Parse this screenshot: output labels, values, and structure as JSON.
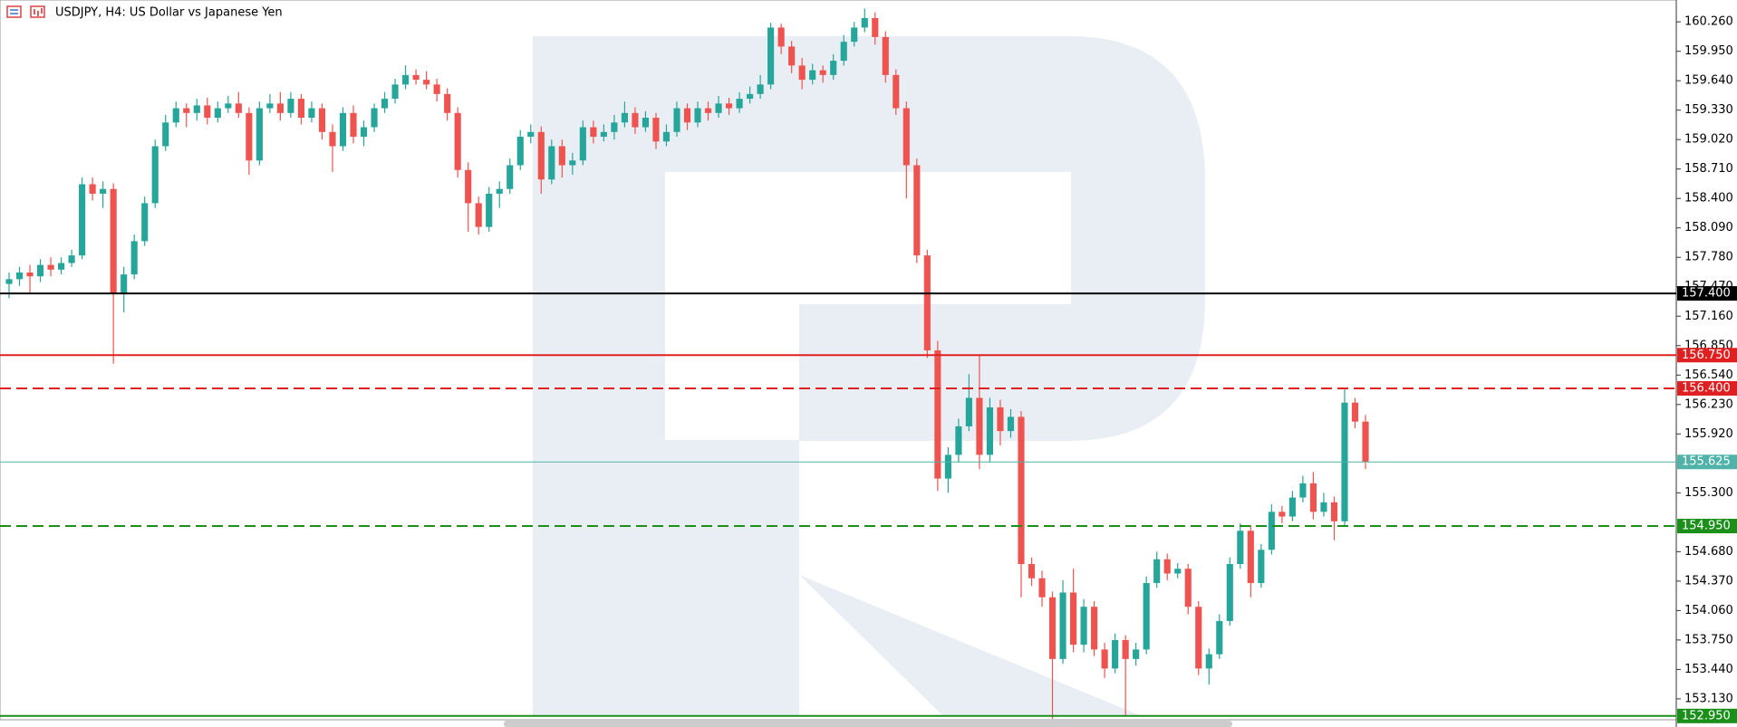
{
  "chart_data": {
    "type": "candlestick",
    "title": "USDJPY, H4:  US Dollar vs Japanese Yen",
    "bull_color": "#26a69a",
    "bear_color": "#ef5350",
    "ylim": [
      152.91,
      160.49
    ],
    "yticks": [
      {
        "value": 160.26,
        "label": "160.260"
      },
      {
        "value": 159.95,
        "label": "159.950"
      },
      {
        "value": 159.64,
        "label": "159.640"
      },
      {
        "value": 159.33,
        "label": "159.330"
      },
      {
        "value": 159.02,
        "label": "159.020"
      },
      {
        "value": 158.71,
        "label": "158.710"
      },
      {
        "value": 158.4,
        "label": "158.400"
      },
      {
        "value": 158.09,
        "label": "158.090"
      },
      {
        "value": 157.78,
        "label": "157.780"
      },
      {
        "value": 157.47,
        "label": "157.470"
      },
      {
        "value": 157.16,
        "label": "157.160"
      },
      {
        "value": 156.85,
        "label": "156.850"
      },
      {
        "value": 156.54,
        "label": "156.540"
      },
      {
        "value": 156.23,
        "label": "156.230"
      },
      {
        "value": 155.92,
        "label": "155.920"
      },
      {
        "value": 155.3,
        "label": "155.300"
      },
      {
        "value": 154.68,
        "label": "154.680"
      },
      {
        "value": 154.37,
        "label": "154.370"
      },
      {
        "value": 154.06,
        "label": "154.060"
      },
      {
        "value": 153.75,
        "label": "153.750"
      },
      {
        "value": 153.44,
        "label": "153.440"
      },
      {
        "value": 153.13,
        "label": "153.130"
      }
    ],
    "levels": [
      {
        "value": 157.4,
        "label": "157.400",
        "color": "#000000",
        "style": "solid"
      },
      {
        "value": 156.75,
        "label": "156.750",
        "color": "#e02020",
        "style": "solid"
      },
      {
        "value": 156.4,
        "label": "156.400",
        "color": "#e02020",
        "style": "dashed"
      },
      {
        "value": 155.625,
        "label": "155.625",
        "color": "#4fb3aa",
        "style": "thin"
      },
      {
        "value": 154.95,
        "label": "154.950",
        "color": "#1a8f1a",
        "style": "dashed"
      },
      {
        "value": 152.95,
        "label": "152.950",
        "color": "#1a8f1a",
        "style": "solid"
      }
    ],
    "ohlc": [
      [
        157.5,
        157.62,
        157.35,
        157.55
      ],
      [
        157.55,
        157.68,
        157.48,
        157.62
      ],
      [
        157.62,
        157.7,
        157.4,
        157.58
      ],
      [
        157.58,
        157.76,
        157.52,
        157.7
      ],
      [
        157.7,
        157.78,
        157.58,
        157.65
      ],
      [
        157.65,
        157.78,
        157.6,
        157.72
      ],
      [
        157.72,
        157.86,
        157.68,
        157.8
      ],
      [
        157.8,
        158.62,
        157.76,
        158.55
      ],
      [
        158.55,
        158.62,
        158.38,
        158.45
      ],
      [
        158.45,
        158.58,
        158.3,
        158.5
      ],
      [
        158.5,
        158.56,
        156.66,
        157.4
      ],
      [
        157.4,
        157.68,
        157.2,
        157.6
      ],
      [
        157.6,
        158.02,
        157.55,
        157.95
      ],
      [
        157.95,
        158.42,
        157.9,
        158.35
      ],
      [
        158.35,
        159.02,
        158.3,
        158.95
      ],
      [
        158.95,
        159.28,
        158.9,
        159.2
      ],
      [
        159.2,
        159.42,
        159.15,
        159.35
      ],
      [
        159.35,
        159.4,
        159.15,
        159.3
      ],
      [
        159.3,
        159.45,
        159.22,
        159.38
      ],
      [
        159.38,
        159.46,
        159.18,
        159.25
      ],
      [
        159.25,
        159.42,
        159.2,
        159.35
      ],
      [
        159.35,
        159.48,
        159.3,
        159.4
      ],
      [
        159.4,
        159.52,
        159.25,
        159.3
      ],
      [
        159.3,
        159.36,
        158.65,
        158.8
      ],
      [
        158.8,
        159.42,
        158.75,
        159.35
      ],
      [
        159.35,
        159.5,
        159.3,
        159.4
      ],
      [
        159.4,
        159.52,
        159.22,
        159.3
      ],
      [
        159.3,
        159.52,
        159.25,
        159.45
      ],
      [
        159.45,
        159.5,
        159.18,
        159.25
      ],
      [
        159.25,
        159.42,
        159.2,
        159.35
      ],
      [
        159.35,
        159.4,
        159.02,
        159.1
      ],
      [
        159.1,
        159.18,
        158.68,
        158.95
      ],
      [
        158.95,
        159.36,
        158.9,
        159.3
      ],
      [
        159.3,
        159.38,
        158.98,
        159.05
      ],
      [
        159.05,
        159.22,
        158.95,
        159.15
      ],
      [
        159.15,
        159.4,
        159.1,
        159.35
      ],
      [
        159.35,
        159.52,
        159.3,
        159.45
      ],
      [
        159.45,
        159.66,
        159.4,
        159.6
      ],
      [
        159.6,
        159.8,
        159.55,
        159.7
      ],
      [
        159.7,
        159.76,
        159.6,
        159.65
      ],
      [
        159.65,
        159.74,
        159.55,
        159.6
      ],
      [
        159.6,
        159.66,
        159.42,
        159.5
      ],
      [
        159.5,
        159.56,
        159.22,
        159.3
      ],
      [
        159.3,
        159.36,
        158.62,
        158.7
      ],
      [
        158.7,
        158.78,
        158.05,
        158.35
      ],
      [
        158.35,
        158.42,
        158.02,
        158.1
      ],
      [
        158.1,
        158.52,
        158.05,
        158.45
      ],
      [
        158.45,
        158.58,
        158.3,
        158.5
      ],
      [
        158.5,
        158.82,
        158.45,
        158.75
      ],
      [
        158.75,
        159.12,
        158.7,
        159.05
      ],
      [
        159.05,
        159.18,
        158.98,
        159.1
      ],
      [
        159.1,
        159.16,
        158.45,
        158.6
      ],
      [
        158.6,
        159.02,
        158.55,
        158.95
      ],
      [
        158.95,
        159.02,
        158.62,
        158.75
      ],
      [
        158.75,
        158.88,
        158.65,
        158.8
      ],
      [
        158.8,
        159.22,
        158.75,
        159.15
      ],
      [
        159.15,
        159.22,
        158.98,
        159.05
      ],
      [
        159.05,
        159.18,
        159.0,
        159.1
      ],
      [
        159.1,
        159.28,
        159.02,
        159.2
      ],
      [
        159.2,
        159.42,
        159.15,
        159.3
      ],
      [
        159.3,
        159.36,
        159.08,
        159.15
      ],
      [
        159.15,
        159.32,
        159.1,
        159.25
      ],
      [
        159.25,
        159.3,
        158.92,
        159.0
      ],
      [
        159.0,
        159.18,
        158.95,
        159.1
      ],
      [
        159.1,
        159.42,
        159.05,
        159.35
      ],
      [
        159.35,
        159.4,
        159.12,
        159.2
      ],
      [
        159.2,
        159.42,
        159.15,
        159.35
      ],
      [
        159.35,
        159.42,
        159.22,
        159.3
      ],
      [
        159.3,
        159.48,
        159.25,
        159.4
      ],
      [
        159.4,
        159.46,
        159.28,
        159.35
      ],
      [
        159.35,
        159.52,
        159.3,
        159.45
      ],
      [
        159.45,
        159.58,
        159.4,
        159.5
      ],
      [
        159.5,
        159.7,
        159.45,
        159.6
      ],
      [
        159.6,
        160.25,
        159.55,
        160.2
      ],
      [
        160.2,
        160.24,
        159.92,
        160.0
      ],
      [
        160.0,
        160.06,
        159.72,
        159.8
      ],
      [
        159.8,
        159.88,
        159.55,
        159.65
      ],
      [
        159.65,
        159.82,
        159.6,
        159.75
      ],
      [
        159.75,
        159.8,
        159.62,
        159.7
      ],
      [
        159.7,
        159.92,
        159.65,
        159.85
      ],
      [
        159.85,
        160.12,
        159.8,
        160.05
      ],
      [
        160.05,
        160.26,
        160.0,
        160.2
      ],
      [
        160.2,
        160.4,
        160.15,
        160.3
      ],
      [
        160.3,
        160.36,
        160.02,
        160.1
      ],
      [
        160.1,
        160.16,
        159.62,
        159.7
      ],
      [
        159.7,
        159.76,
        159.28,
        159.35
      ],
      [
        159.35,
        159.42,
        158.4,
        158.75
      ],
      [
        158.75,
        158.82,
        157.72,
        157.8
      ],
      [
        157.8,
        157.86,
        156.72,
        156.8
      ],
      [
        156.8,
        156.9,
        155.32,
        155.45
      ],
      [
        155.45,
        155.78,
        155.3,
        155.7
      ],
      [
        155.7,
        156.08,
        155.62,
        156.0
      ],
      [
        156.0,
        156.55,
        155.95,
        156.3
      ],
      [
        156.3,
        156.75,
        155.55,
        155.7
      ],
      [
        155.7,
        156.3,
        155.62,
        156.2
      ],
      [
        156.2,
        156.28,
        155.8,
        155.95
      ],
      [
        155.95,
        156.18,
        155.88,
        156.1
      ],
      [
        156.1,
        156.16,
        154.2,
        154.55
      ],
      [
        154.55,
        154.62,
        154.32,
        154.4
      ],
      [
        154.4,
        154.48,
        154.1,
        154.2
      ],
      [
        154.2,
        154.26,
        152.92,
        153.55
      ],
      [
        153.55,
        154.38,
        153.5,
        154.25
      ],
      [
        154.25,
        154.5,
        153.62,
        153.7
      ],
      [
        153.7,
        154.18,
        153.62,
        154.1
      ],
      [
        154.1,
        154.16,
        153.58,
        153.65
      ],
      [
        153.65,
        153.72,
        153.35,
        153.45
      ],
      [
        153.45,
        153.82,
        153.4,
        153.75
      ],
      [
        153.75,
        153.8,
        152.95,
        153.55
      ],
      [
        153.55,
        153.72,
        153.48,
        153.65
      ],
      [
        153.65,
        154.42,
        153.6,
        154.35
      ],
      [
        154.35,
        154.68,
        154.3,
        154.6
      ],
      [
        154.6,
        154.66,
        154.38,
        154.45
      ],
      [
        154.45,
        154.56,
        154.4,
        154.5
      ],
      [
        154.5,
        154.55,
        154.02,
        154.1
      ],
      [
        154.1,
        154.16,
        153.38,
        153.45
      ],
      [
        153.45,
        153.66,
        153.28,
        153.6
      ],
      [
        153.6,
        154.02,
        153.55,
        153.95
      ],
      [
        153.95,
        154.62,
        153.9,
        154.55
      ],
      [
        154.55,
        154.98,
        154.5,
        154.9
      ],
      [
        154.9,
        154.96,
        154.2,
        154.35
      ],
      [
        154.35,
        154.76,
        154.3,
        154.7
      ],
      [
        154.7,
        155.18,
        154.65,
        155.1
      ],
      [
        155.1,
        155.16,
        154.98,
        155.05
      ],
      [
        155.05,
        155.32,
        155.0,
        155.25
      ],
      [
        155.25,
        155.48,
        155.2,
        155.4
      ],
      [
        155.4,
        155.52,
        155.02,
        155.1
      ],
      [
        155.1,
        155.3,
        155.05,
        155.2
      ],
      [
        155.2,
        155.26,
        154.8,
        155.0
      ],
      [
        155.0,
        156.4,
        154.95,
        156.25
      ],
      [
        156.25,
        156.3,
        155.98,
        156.05
      ],
      [
        156.05,
        156.12,
        155.55,
        155.625
      ]
    ]
  }
}
